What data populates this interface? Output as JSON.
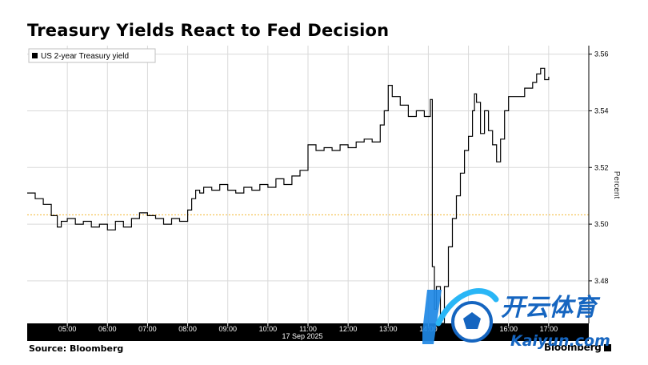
{
  "header": {
    "title": "Treasury Yields React to Fed Decision"
  },
  "footer": {
    "source": "Source: Bloomberg",
    "brand": "Bloomberg"
  },
  "watermark": {
    "cn_text": "开云体育",
    "latin_text": "Kaiyun.com"
  },
  "colors": {
    "line": "#000000",
    "reference_line": "#f2b632",
    "axis_bar": "#000000",
    "grid": "#d9d9d9"
  },
  "chart_data": {
    "type": "line",
    "title": "Treasury Yields React to Fed Decision",
    "ylabel": "Percent",
    "date_label": "17 Sep 2025",
    "ylim": [
      3.465,
      3.563
    ],
    "xlim": [
      4.0,
      18.0
    ],
    "y_ticks": [
      "3.56",
      "3.54",
      "3.52",
      "3.50",
      "3.48"
    ],
    "x_ticks": [
      {
        "value": 5,
        "label": "05:00"
      },
      {
        "value": 6,
        "label": "06:00"
      },
      {
        "value": 7,
        "label": "07:00"
      },
      {
        "value": 8,
        "label": "08:00"
      },
      {
        "value": 9,
        "label": "09:00"
      },
      {
        "value": 10,
        "label": "10:00"
      },
      {
        "value": 11,
        "label": "11:00"
      },
      {
        "value": 12,
        "label": "12:00"
      },
      {
        "value": 13,
        "label": "13:00"
      },
      {
        "value": 14,
        "label": "14:00"
      },
      {
        "value": 15,
        "label": "15:00"
      },
      {
        "value": 16,
        "label": "16:00"
      },
      {
        "value": 17,
        "label": "17:00"
      }
    ],
    "reference_line": 3.5033,
    "legend": [
      "US 2-year Treasury yield"
    ],
    "legend_position": "top-left",
    "series": [
      {
        "name": "US 2-year Treasury yield",
        "x": [
          4.0,
          4.2,
          4.4,
          4.6,
          4.75,
          4.85,
          5.0,
          5.2,
          5.4,
          5.6,
          5.8,
          6.0,
          6.2,
          6.4,
          6.6,
          6.8,
          7.0,
          7.2,
          7.4,
          7.6,
          7.8,
          8.0,
          8.1,
          8.2,
          8.3,
          8.4,
          8.6,
          8.8,
          9.0,
          9.2,
          9.4,
          9.6,
          9.8,
          10.0,
          10.2,
          10.4,
          10.6,
          10.8,
          11.0,
          11.2,
          11.4,
          11.6,
          11.8,
          12.0,
          12.2,
          12.4,
          12.6,
          12.8,
          12.9,
          13.0,
          13.1,
          13.3,
          13.5,
          13.7,
          13.9,
          14.05,
          14.1,
          14.15,
          14.2,
          14.3,
          14.4,
          14.5,
          14.6,
          14.7,
          14.8,
          14.9,
          15.0,
          15.1,
          15.15,
          15.2,
          15.3,
          15.4,
          15.5,
          15.6,
          15.7,
          15.8,
          15.9,
          16.0,
          16.2,
          16.4,
          16.6,
          16.7,
          16.8,
          16.9,
          17.0
        ],
        "y": [
          3.511,
          3.509,
          3.507,
          3.503,
          3.499,
          3.501,
          3.502,
          3.5,
          3.501,
          3.499,
          3.5,
          3.498,
          3.501,
          3.499,
          3.502,
          3.504,
          3.503,
          3.502,
          3.5,
          3.502,
          3.501,
          3.505,
          3.509,
          3.512,
          3.511,
          3.513,
          3.512,
          3.514,
          3.512,
          3.511,
          3.513,
          3.512,
          3.514,
          3.513,
          3.516,
          3.514,
          3.517,
          3.519,
          3.528,
          3.526,
          3.527,
          3.526,
          3.528,
          3.527,
          3.529,
          3.53,
          3.529,
          3.535,
          3.54,
          3.549,
          3.545,
          3.542,
          3.538,
          3.54,
          3.538,
          3.544,
          3.485,
          3.47,
          3.478,
          3.465,
          3.478,
          3.492,
          3.502,
          3.51,
          3.518,
          3.526,
          3.531,
          3.54,
          3.546,
          3.543,
          3.532,
          3.54,
          3.533,
          3.528,
          3.522,
          3.53,
          3.54,
          3.545,
          3.545,
          3.548,
          3.55,
          3.553,
          3.555,
          3.551,
          3.552
        ]
      }
    ]
  }
}
